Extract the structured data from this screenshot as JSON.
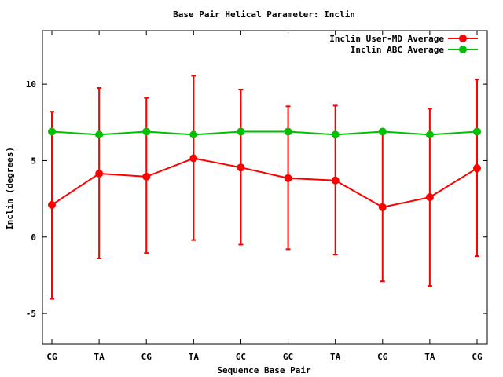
{
  "chart_data": {
    "type": "line",
    "title": "Base Pair Helical Parameter: Inclin",
    "xlabel": "Sequence Base Pair",
    "ylabel": "Inclin (degrees)",
    "categories": [
      "CG",
      "TA",
      "CG",
      "TA",
      "GC",
      "GC",
      "TA",
      "CG",
      "TA",
      "CG"
    ],
    "ylim": [
      -7,
      13.5
    ],
    "yticks": [
      -5,
      0,
      5,
      10
    ],
    "legend_position": "top-right",
    "grid": false,
    "series": [
      {
        "name": "Inclin User-MD Average",
        "color": "#ff0000",
        "values": [
          2.1,
          4.15,
          3.95,
          5.15,
          4.55,
          3.85,
          3.7,
          1.95,
          2.6,
          4.5
        ],
        "error_low": [
          -4.05,
          -1.4,
          -1.05,
          -0.2,
          -0.5,
          -0.8,
          -1.15,
          -2.9,
          -3.2,
          -1.25
        ],
        "error_high": [
          8.2,
          9.75,
          9.1,
          10.55,
          9.65,
          8.55,
          8.6,
          6.8,
          8.4,
          10.3
        ]
      },
      {
        "name": "Inclin ABC Average",
        "color": "#00c000",
        "values": [
          6.9,
          6.7,
          6.9,
          6.7,
          6.9,
          6.9,
          6.7,
          6.9,
          6.7,
          6.9
        ]
      }
    ]
  }
}
